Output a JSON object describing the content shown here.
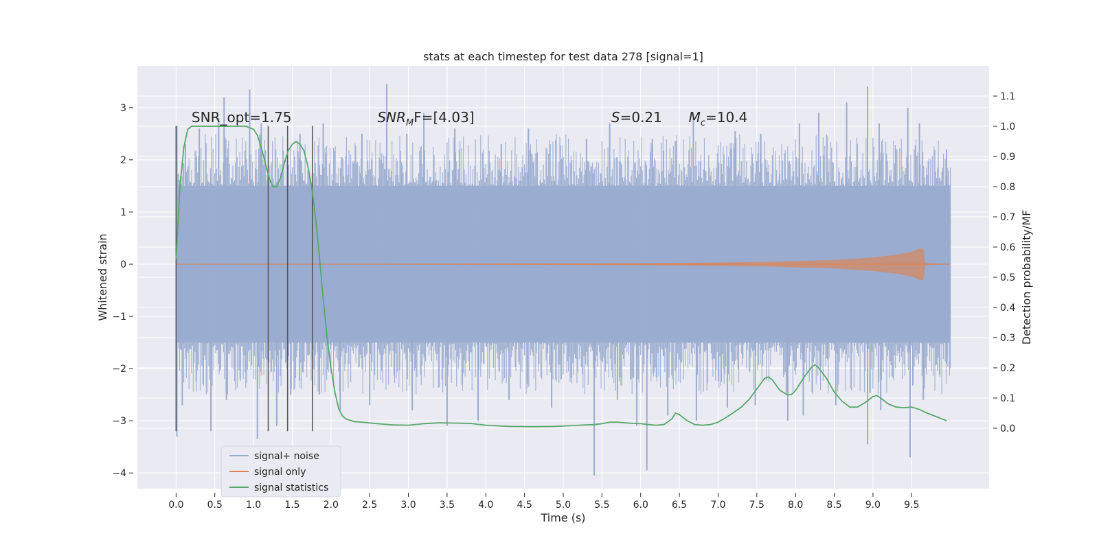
{
  "chart_data": {
    "type": "line",
    "title": "stats at each timestep for test data 278 [signal=1]",
    "xlabel": "Time (s)",
    "ylabel_left": "Whitened strain",
    "ylabel_right": "Detection probability/MF",
    "xlim": [
      -0.5,
      10.5
    ],
    "ylim_left": [
      -4.3,
      3.8
    ],
    "ylim_right": [
      -0.2,
      1.2
    ],
    "x_ticks": [
      0.0,
      0.5,
      1.0,
      1.5,
      2.0,
      2.5,
      3.0,
      3.5,
      4.0,
      4.5,
      5.0,
      5.5,
      6.0,
      6.5,
      7.0,
      7.5,
      8.0,
      8.5,
      9.0,
      9.5
    ],
    "x_tick_labels": [
      "0.0",
      "0.5",
      "1.0",
      "1.5",
      "2.0",
      "2.5",
      "3.0",
      "3.5",
      "4.0",
      "4.5",
      "5.0",
      "5.5",
      "6.0",
      "6.5",
      "7.0",
      "7.5",
      "8.0",
      "8.5",
      "9.0",
      "9.5"
    ],
    "y_ticks_left": [
      3,
      2,
      1,
      0,
      -1,
      -2,
      -3,
      -4
    ],
    "y_tick_labels_left": [
      "3",
      "2",
      "1",
      "0",
      "−1",
      "−2",
      "−3",
      "−4"
    ],
    "y_ticks_right": [
      1.1,
      1.0,
      0.9,
      0.8,
      0.7,
      0.6,
      0.5,
      0.4,
      0.3,
      0.2,
      0.1,
      0.0
    ],
    "y_tick_labels_right": [
      "1.1",
      "1.0",
      "0.9",
      "0.8",
      "0.7",
      "0.6",
      "0.5",
      "0.4",
      "0.3",
      "0.2",
      "0.1",
      "0.0"
    ],
    "grid": true,
    "legend_position": "lower-left",
    "colors": {
      "background": "#eaeaf2",
      "grid": "#ffffff",
      "noise": "#9aaccf",
      "signal": "#dd8452",
      "stats": "#55a868",
      "vlines": "#555555"
    },
    "series": [
      {
        "name": "signal+ noise",
        "axis": "left",
        "note": "noise band approx between -1.5 and 1.5 with spikes to about ±3",
        "band": [
          -1.5,
          1.5
        ],
        "spikes_up": [
          [
            0.01,
            2.65
          ],
          [
            0.12,
            2.3
          ],
          [
            0.3,
            2.6
          ],
          [
            0.55,
            2.8
          ],
          [
            0.62,
            3.2
          ],
          [
            0.95,
            3.35
          ],
          [
            1.1,
            2.7
          ],
          [
            1.6,
            2.5
          ],
          [
            1.9,
            2.7
          ],
          [
            2.4,
            2.5
          ],
          [
            2.72,
            3.45
          ],
          [
            2.98,
            2.5
          ],
          [
            3.2,
            2.9
          ],
          [
            3.6,
            2.6
          ],
          [
            4.2,
            2.3
          ],
          [
            4.55,
            2.6
          ],
          [
            5.3,
            2.4
          ],
          [
            5.6,
            2.7
          ],
          [
            6.15,
            2.4
          ],
          [
            6.68,
            2.9
          ],
          [
            7.22,
            2.55
          ],
          [
            7.55,
            2.5
          ],
          [
            8.05,
            2.7
          ],
          [
            8.3,
            2.9
          ],
          [
            8.66,
            3.1
          ],
          [
            8.93,
            3.4
          ],
          [
            9.08,
            2.7
          ],
          [
            9.45,
            3.0
          ],
          [
            9.6,
            2.7
          ],
          [
            9.95,
            2.2
          ]
        ],
        "spikes_down": [
          [
            0.01,
            -3.3
          ],
          [
            0.08,
            -2.7
          ],
          [
            0.45,
            -3.2
          ],
          [
            0.65,
            -2.6
          ],
          [
            1.05,
            -3.35
          ],
          [
            1.3,
            -3.1
          ],
          [
            1.48,
            -2.5
          ],
          [
            1.85,
            -2.5
          ],
          [
            2.12,
            -2.8
          ],
          [
            2.5,
            -2.7
          ],
          [
            3.05,
            -2.8
          ],
          [
            3.5,
            -3.1
          ],
          [
            3.9,
            -3.0
          ],
          [
            4.3,
            -2.6
          ],
          [
            4.85,
            -2.75
          ],
          [
            5.4,
            -4.05
          ],
          [
            5.7,
            -2.6
          ],
          [
            5.95,
            -3.1
          ],
          [
            6.08,
            -3.95
          ],
          [
            6.35,
            -2.9
          ],
          [
            6.72,
            -3.0
          ],
          [
            7.12,
            -2.75
          ],
          [
            7.48,
            -2.7
          ],
          [
            7.9,
            -3.0
          ],
          [
            8.1,
            -2.9
          ],
          [
            8.52,
            -2.7
          ],
          [
            8.93,
            -3.45
          ],
          [
            9.1,
            -2.8
          ],
          [
            9.48,
            -3.7
          ],
          [
            9.65,
            -2.6
          ],
          [
            9.95,
            -1.9
          ]
        ]
      },
      {
        "name": "signal only",
        "axis": "left",
        "note": "chirp growing toward merger near t≈9.65",
        "x": [
          0.0,
          4.0,
          6.0,
          7.5,
          8.5,
          9.0,
          9.3,
          9.5,
          9.6,
          9.65,
          9.68,
          10.0
        ],
        "amplitude": [
          0.0,
          0.01,
          0.02,
          0.04,
          0.08,
          0.13,
          0.18,
          0.24,
          0.3,
          0.3,
          0.02,
          0.0
        ]
      },
      {
        "name": "signal statistics",
        "axis": "right",
        "x": [
          0.0,
          0.05,
          0.1,
          0.15,
          0.2,
          0.3,
          0.4,
          0.5,
          0.6,
          0.7,
          0.8,
          0.9,
          1.0,
          1.05,
          1.1,
          1.15,
          1.2,
          1.25,
          1.3,
          1.35,
          1.4,
          1.45,
          1.5,
          1.55,
          1.6,
          1.65,
          1.7,
          1.75,
          1.8,
          1.85,
          1.9,
          1.95,
          2.0,
          2.05,
          2.1,
          2.15,
          2.2,
          2.3,
          2.4,
          2.6,
          2.8,
          3.0,
          3.2,
          3.4,
          3.6,
          3.8,
          4.0,
          4.3,
          4.6,
          4.9,
          5.2,
          5.4,
          5.5,
          5.6,
          5.7,
          5.9,
          6.0,
          6.1,
          6.2,
          6.3,
          6.4,
          6.45,
          6.5,
          6.6,
          6.7,
          6.8,
          6.9,
          7.0,
          7.1,
          7.2,
          7.3,
          7.4,
          7.5,
          7.6,
          7.65,
          7.7,
          7.8,
          7.9,
          7.95,
          8.0,
          8.1,
          8.2,
          8.25,
          8.3,
          8.4,
          8.5,
          8.6,
          8.7,
          8.8,
          8.9,
          9.0,
          9.05,
          9.1,
          9.2,
          9.3,
          9.4,
          9.5,
          9.6,
          9.7,
          9.8,
          9.9,
          9.95
        ],
        "y": [
          0.56,
          0.8,
          0.93,
          0.99,
          1.0,
          1.0,
          1.0,
          1.0,
          1.0,
          1.0,
          1.0,
          1.0,
          0.99,
          0.97,
          0.93,
          0.88,
          0.83,
          0.8,
          0.8,
          0.83,
          0.88,
          0.92,
          0.94,
          0.95,
          0.94,
          0.92,
          0.87,
          0.8,
          0.7,
          0.57,
          0.43,
          0.3,
          0.2,
          0.12,
          0.065,
          0.04,
          0.03,
          0.022,
          0.02,
          0.015,
          0.011,
          0.01,
          0.015,
          0.018,
          0.017,
          0.016,
          0.01,
          0.006,
          0.005,
          0.006,
          0.01,
          0.012,
          0.015,
          0.02,
          0.02,
          0.016,
          0.015,
          0.012,
          0.01,
          0.012,
          0.03,
          0.05,
          0.045,
          0.025,
          0.012,
          0.01,
          0.012,
          0.02,
          0.035,
          0.052,
          0.07,
          0.095,
          0.13,
          0.165,
          0.17,
          0.16,
          0.125,
          0.11,
          0.112,
          0.125,
          0.165,
          0.2,
          0.21,
          0.2,
          0.165,
          0.12,
          0.09,
          0.07,
          0.07,
          0.085,
          0.105,
          0.108,
          0.1,
          0.08,
          0.07,
          0.068,
          0.07,
          0.062,
          0.05,
          0.04,
          0.03,
          0.025
        ]
      }
    ],
    "vertical_lines": {
      "x": [
        0.0,
        1.19,
        1.44,
        1.76
      ],
      "ymin": -3.2,
      "ymax": 2.65
    },
    "annotations": [
      {
        "text": "SNR_opt=1.75",
        "x": 0.2,
        "y": 2.72
      },
      {
        "main": "SNR",
        "sub": "M",
        "rest": "F=[4.03]",
        "x": 2.6,
        "y": 2.72
      },
      {
        "main": "S",
        "rest": "=0.21",
        "x": 5.62,
        "y": 2.72
      },
      {
        "main": "M",
        "sub": "c",
        "rest": "=10.4",
        "x": 6.62,
        "y": 2.72
      }
    ]
  }
}
